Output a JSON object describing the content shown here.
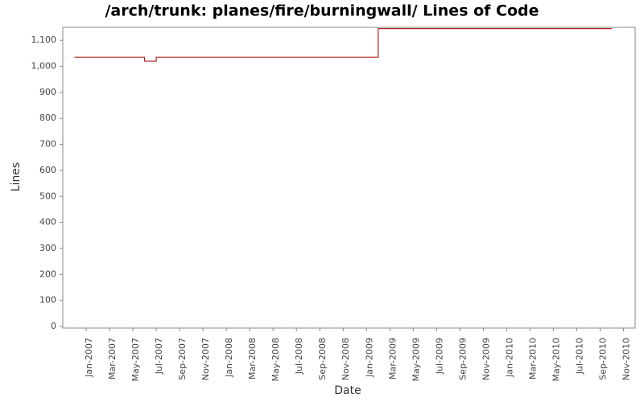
{
  "chart_data": {
    "type": "line",
    "step": true,
    "title": "/arch/trunk: planes/fire/burningwall/ Lines of Code",
    "x_label": "Date",
    "y_label": "Lines",
    "x": [
      "2006-12",
      "2007-06",
      "2007-07",
      "2009-02",
      "2010-10"
    ],
    "series": [
      {
        "name": "Lines",
        "color": "#b22222",
        "values": [
          1035,
          1020,
          1035,
          1145,
          1145
        ]
      }
    ],
    "xlim": [
      "2006-11",
      "2010-12"
    ],
    "xticks": [
      {
        "value": "2007-01",
        "label": "Jan-2007"
      },
      {
        "value": "2007-03",
        "label": "Mar-2007"
      },
      {
        "value": "2007-05",
        "label": "May-2007"
      },
      {
        "value": "2007-07",
        "label": "Jul-2007"
      },
      {
        "value": "2007-09",
        "label": "Sep-2007"
      },
      {
        "value": "2007-11",
        "label": "Nov-2007"
      },
      {
        "value": "2008-01",
        "label": "Jan-2008"
      },
      {
        "value": "2008-03",
        "label": "Mar-2008"
      },
      {
        "value": "2008-05",
        "label": "May-2008"
      },
      {
        "value": "2008-07",
        "label": "Jul-2008"
      },
      {
        "value": "2008-09",
        "label": "Sep-2008"
      },
      {
        "value": "2008-11",
        "label": "Nov-2008"
      },
      {
        "value": "2009-01",
        "label": "Jan-2009"
      },
      {
        "value": "2009-03",
        "label": "Mar-2009"
      },
      {
        "value": "2009-05",
        "label": "May-2009"
      },
      {
        "value": "2009-07",
        "label": "Jul-2009"
      },
      {
        "value": "2009-09",
        "label": "Sep-2009"
      },
      {
        "value": "2009-11",
        "label": "Nov-2009"
      },
      {
        "value": "2010-01",
        "label": "Jan-2010"
      },
      {
        "value": "2010-03",
        "label": "Mar-2010"
      },
      {
        "value": "2010-05",
        "label": "May-2010"
      },
      {
        "value": "2010-07",
        "label": "Jul-2010"
      },
      {
        "value": "2010-09",
        "label": "Sep-2010"
      },
      {
        "value": "2010-11",
        "label": "Nov-2010"
      }
    ],
    "ylim": [
      -6,
      1150
    ],
    "yticks": [
      0,
      100,
      200,
      300,
      400,
      500,
      600,
      700,
      800,
      900,
      {
        "value": 1000,
        "label": "1,000"
      },
      {
        "value": 1100,
        "label": "1,100"
      }
    ]
  }
}
